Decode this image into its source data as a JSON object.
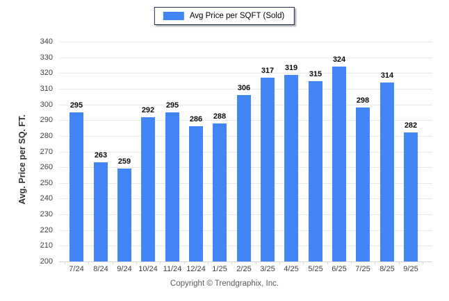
{
  "legend": {
    "label": "Avg Price per SQFT (Sold)",
    "swatch_color": "#4285f4"
  },
  "footer": {
    "copyright": "Copyright © Trendgraphix, Inc."
  },
  "colors": {
    "bar": "#4285f4",
    "gridline": "#e8e8e8",
    "axis_text": "#404040",
    "value_label": "#0a0a0a",
    "legend_border": "#1b2a4a",
    "footer_text": "#595959"
  },
  "chart_data": {
    "type": "bar",
    "title": "",
    "xlabel": "",
    "ylabel": "Avg. Price per SQ. FT.",
    "categories": [
      "7/24",
      "8/24",
      "9/24",
      "10/24",
      "11/24",
      "12/24",
      "1/25",
      "2/25",
      "3/25",
      "4/25",
      "5/25",
      "6/25",
      "7/25",
      "8/25",
      "9/25"
    ],
    "series": [
      {
        "name": "Avg Price per SQFT (Sold)",
        "values": [
          295,
          263,
          259,
          292,
          295,
          286,
          288,
          306,
          317,
          319,
          315,
          324,
          298,
          314,
          282
        ]
      }
    ],
    "ylim": [
      200,
      340
    ],
    "yticks": [
      200,
      210,
      220,
      230,
      240,
      250,
      260,
      270,
      280,
      290,
      300,
      310,
      320,
      330,
      340
    ],
    "grid": "horizontal",
    "legend_position": "top-center",
    "value_labels": true,
    "bar_color": "#4285f4"
  }
}
